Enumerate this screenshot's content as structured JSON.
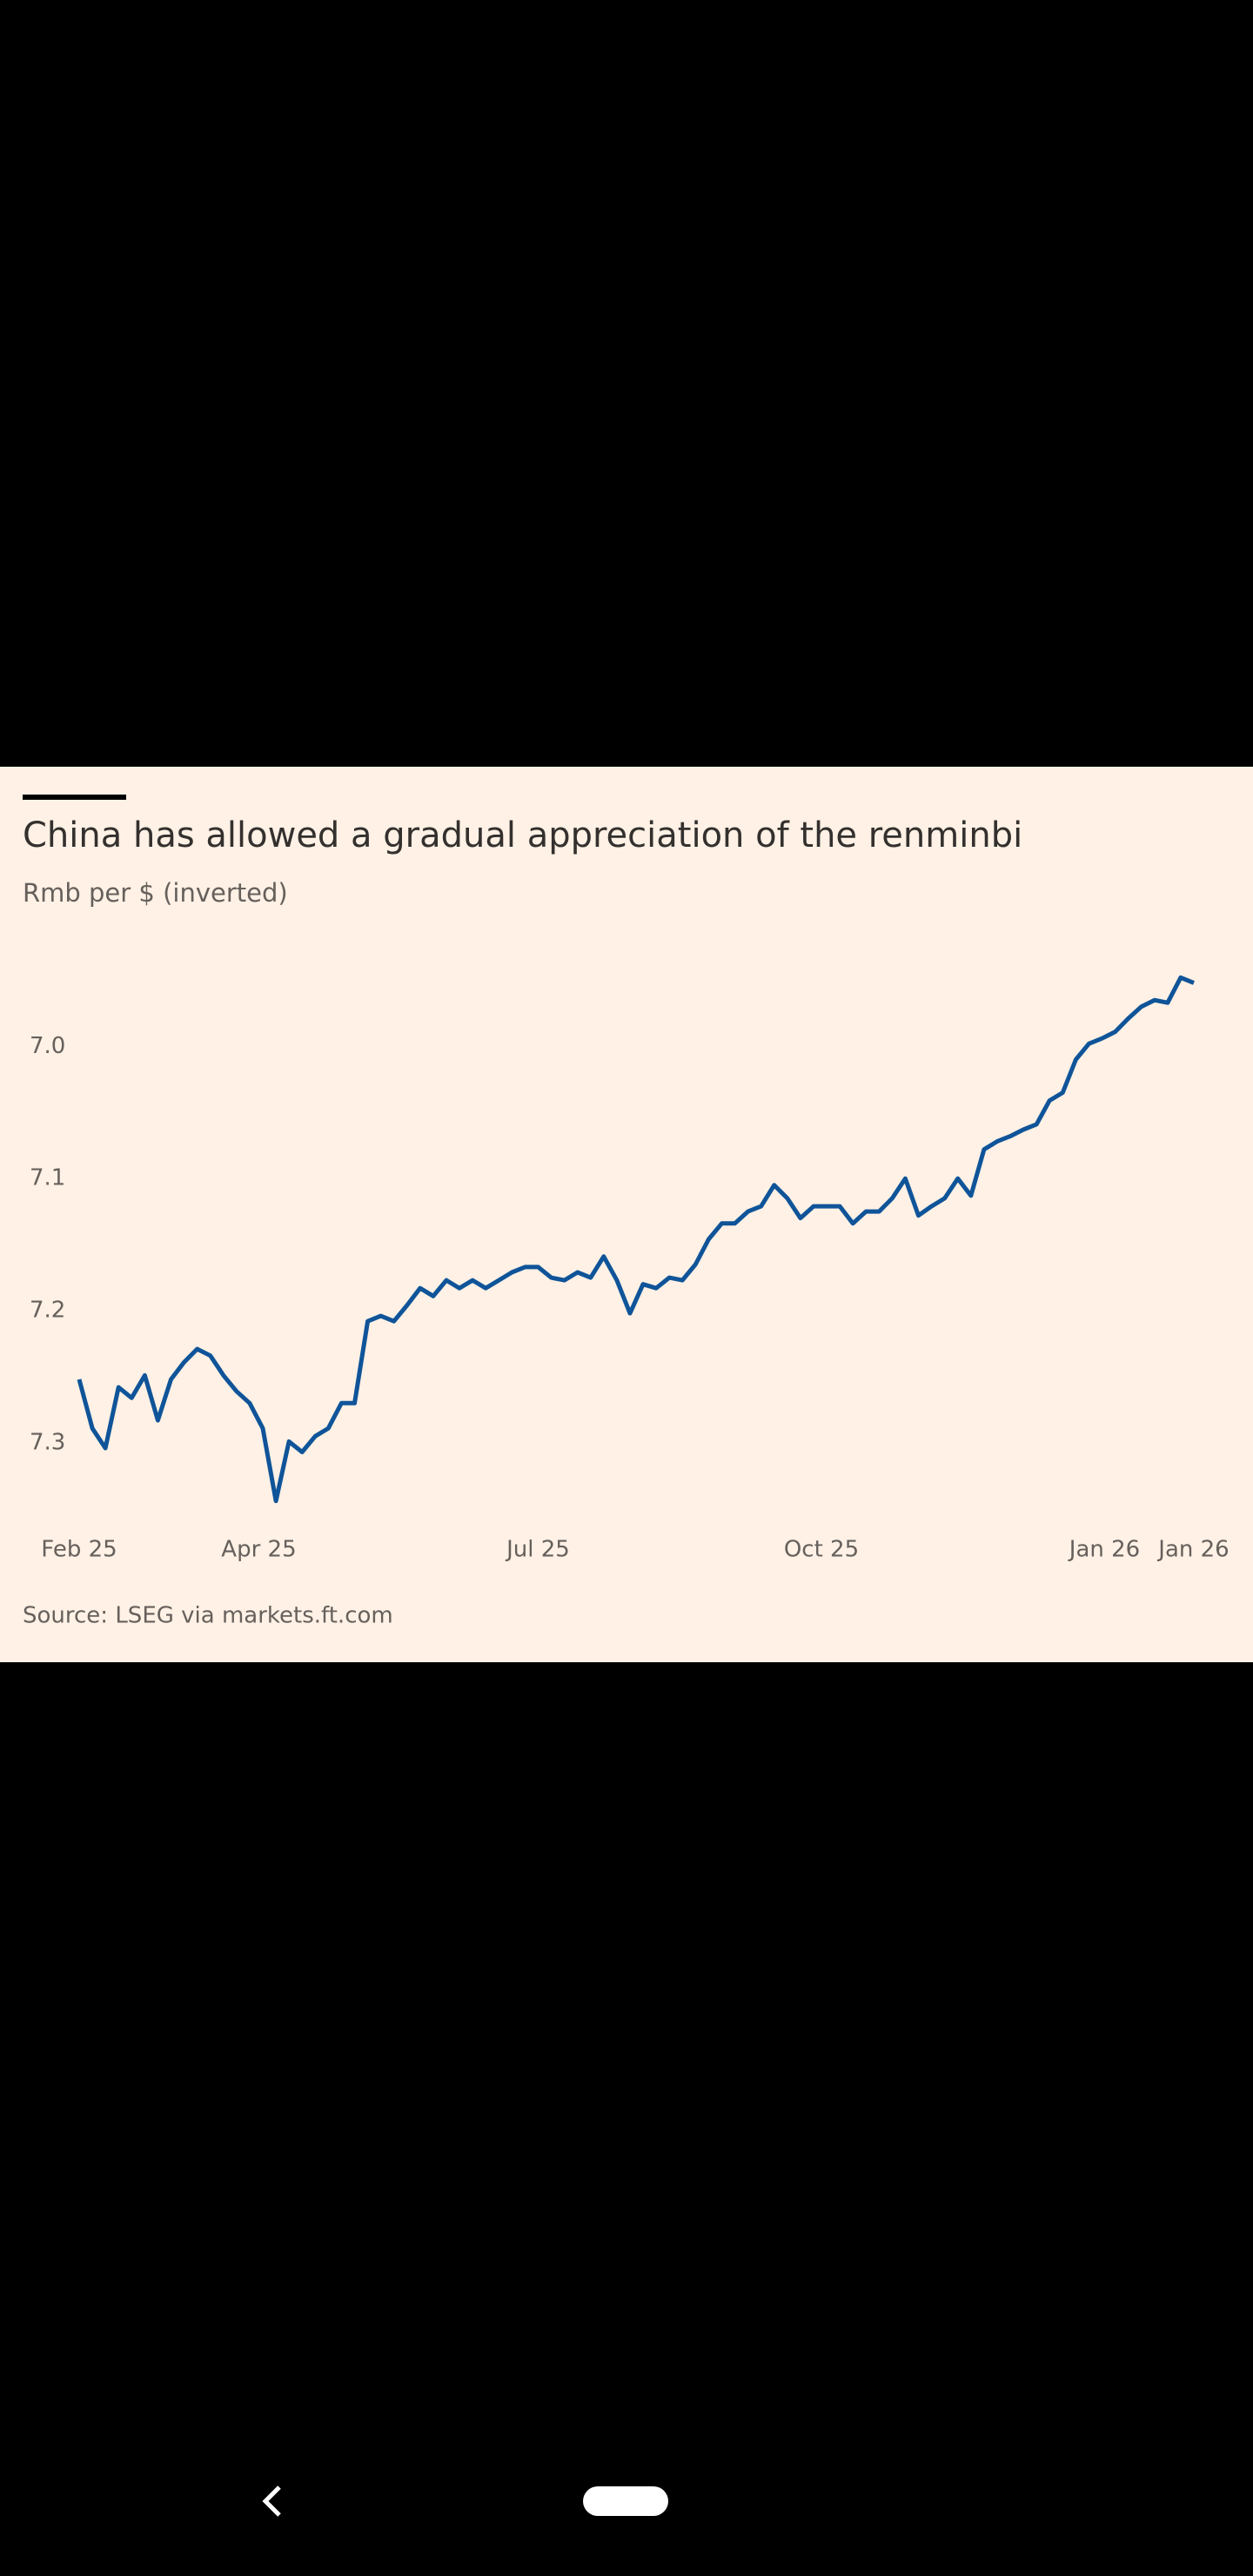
{
  "chart_data": {
    "type": "line",
    "title": "China has allowed a gradual appreciation of the renminbi",
    "subtitle": "Rmb per $ (inverted)",
    "source": "Source: LSEG via markets.ft.com",
    "series": [
      {
        "color": "#0f5499",
        "values": [
          7.252,
          7.289,
          7.304,
          7.258,
          7.266,
          7.249,
          7.283,
          7.252,
          7.239,
          7.229,
          7.234,
          7.249,
          7.261,
          7.27,
          7.289,
          7.344,
          7.299,
          7.307,
          7.295,
          7.289,
          7.27,
          7.27,
          7.208,
          7.204,
          7.208,
          7.196,
          7.183,
          7.189,
          7.177,
          7.183,
          7.177,
          7.183,
          7.177,
          7.171,
          7.167,
          7.167,
          7.175,
          7.177,
          7.171,
          7.175,
          7.159,
          7.177,
          7.202,
          7.18,
          7.183,
          7.175,
          7.177,
          7.165,
          7.146,
          7.134,
          7.134,
          7.125,
          7.121,
          7.105,
          7.115,
          7.13,
          7.121,
          7.121,
          7.121,
          7.134,
          7.125,
          7.125,
          7.115,
          7.1,
          7.128,
          7.121,
          7.115,
          7.1,
          7.113,
          7.078,
          7.072,
          7.068,
          7.063,
          7.059,
          7.041,
          7.035,
          7.01,
          6.998,
          6.994,
          6.989,
          6.979,
          6.97,
          6.965,
          6.967,
          6.948,
          6.952
        ]
      }
    ],
    "xlim": [
      0,
      85
    ],
    "xticks": [
      {
        "value": 0,
        "label": "Feb 25"
      },
      {
        "value": 13.7,
        "label": "Apr 25"
      },
      {
        "value": 35,
        "label": "Jul 25"
      },
      {
        "value": 56.6,
        "label": "Oct 25"
      },
      {
        "value": 78.2,
        "label": "Jan 26"
      },
      {
        "value": 85,
        "label": "Jan 26"
      }
    ],
    "ylim": [
      6.93,
      7.36
    ],
    "inverted": true,
    "yticks": [
      {
        "value": 7.0,
        "label": "7.0"
      },
      {
        "value": 7.1,
        "label": "7.1"
      },
      {
        "value": 7.2,
        "label": "7.2"
      },
      {
        "value": 7.3,
        "label": "7.3"
      }
    ],
    "grid": false
  }
}
